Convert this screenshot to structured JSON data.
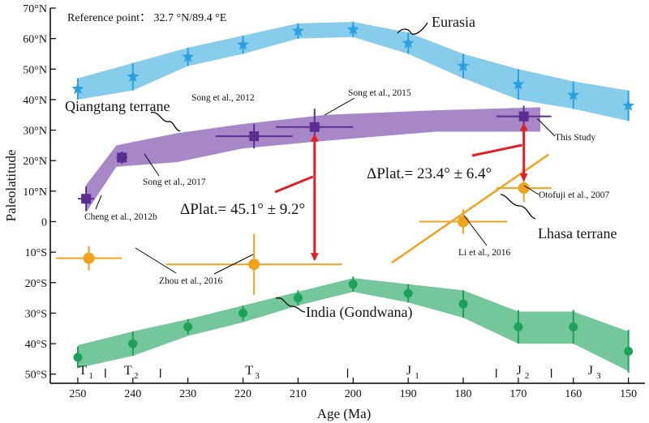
{
  "chart_data": {
    "type": "scatter",
    "xlabel": "Age (Ma)",
    "ylabel": "Paleolatitude",
    "xlim": [
      255,
      147
    ],
    "ylim": [
      -53,
      70
    ],
    "x_ticks": [
      250,
      240,
      230,
      220,
      210,
      200,
      190,
      180,
      170,
      160,
      150
    ],
    "y_ticks": [
      {
        "v": 70,
        "label": "70°N"
      },
      {
        "v": 60,
        "label": "60°N"
      },
      {
        "v": 50,
        "label": "50°N"
      },
      {
        "v": 40,
        "label": "40°N"
      },
      {
        "v": 30,
        "label": "30°N"
      },
      {
        "v": 20,
        "label": "20°N"
      },
      {
        "v": 10,
        "label": "10°N"
      },
      {
        "v": 0,
        "label": "0"
      },
      {
        "v": -10,
        "label": "10°S"
      },
      {
        "v": -20,
        "label": "20°S"
      },
      {
        "v": -30,
        "label": "30°S"
      },
      {
        "v": -40,
        "label": "40°S"
      },
      {
        "v": -50,
        "label": "50°S"
      }
    ],
    "reference_point": "Reference point： 32.7 °N/89.4 °E",
    "colors": {
      "eurasia_band": "#87cdeb",
      "eurasia_marker": "#2b9fe0",
      "qiangtang_band": "#a787c8",
      "qiangtang_marker": "#5b2d91",
      "india_band": "#74c79a",
      "india_marker": "#1ea05a",
      "lhasa": "#f2a21d",
      "arrow": "#e01f26"
    },
    "eurasia": {
      "name": "Eurasia",
      "points": [
        {
          "x": 250,
          "y": 43.5,
          "dy": 3.5
        },
        {
          "x": 240,
          "y": 47.5,
          "dy": 4.5
        },
        {
          "x": 230,
          "y": 54,
          "dy": 3
        },
        {
          "x": 220,
          "y": 58,
          "dy": 3
        },
        {
          "x": 210,
          "y": 62.5,
          "dy": 2.5
        },
        {
          "x": 200,
          "y": 63,
          "dy": 2.5
        },
        {
          "x": 190,
          "y": 58.5,
          "dy": 3.5
        },
        {
          "x": 180,
          "y": 51,
          "dy": 4
        },
        {
          "x": 170,
          "y": 45,
          "dy": 5
        },
        {
          "x": 160,
          "y": 41.5,
          "dy": 4.5
        },
        {
          "x": 150,
          "y": 38,
          "dy": 5
        }
      ]
    },
    "qiangtang": {
      "name": "Qiangtang terrane",
      "band": {
        "upper": [
          [
            248.5,
            12
          ],
          [
            243,
            25
          ],
          [
            232,
            29
          ],
          [
            220,
            32
          ],
          [
            205,
            35
          ],
          [
            185,
            36.5
          ],
          [
            166,
            37.5
          ]
        ],
        "lower": [
          [
            248.5,
            3
          ],
          [
            243,
            18
          ],
          [
            232,
            19.5
          ],
          [
            220,
            24
          ],
          [
            205,
            26.5
          ],
          [
            185,
            29.5
          ],
          [
            166,
            29.5
          ]
        ]
      },
      "points": [
        {
          "x": 248.5,
          "y": 7.5,
          "dx": 1.5,
          "dy": 4,
          "label": "Cheng et al., 2012b"
        },
        {
          "x": 242,
          "y": 21,
          "dx": 1,
          "dy": 2,
          "label": "Song et al., 2017"
        },
        {
          "x": 218,
          "y": 28,
          "dx": 7,
          "dy": 4,
          "label": "Song et al., 2012"
        },
        {
          "x": 207,
          "y": 31,
          "dx": 7,
          "dy": 6,
          "label": "Song et al., 2015"
        },
        {
          "x": 169,
          "y": 34.5,
          "dx": 5,
          "dy": 3.5,
          "label": "This Study"
        }
      ]
    },
    "lhasa": {
      "name": "Lhasa terrane",
      "trend": [
        [
          193,
          -13.5
        ],
        [
          164.5,
          22
        ]
      ],
      "points": [
        {
          "x": 248,
          "y": -12,
          "dx": 6,
          "dy": 4,
          "label": "Zhou et al., 2016"
        },
        {
          "x": 218,
          "y": -14,
          "dx": 16,
          "dy": 10,
          "label": "Zhou et al., 2016"
        },
        {
          "x": 180,
          "y": 0,
          "dx": 8,
          "dy": 4,
          "label": "Li et al., 2016"
        },
        {
          "x": 169,
          "y": 11,
          "dx": 5,
          "dy": 4.5,
          "label": "Otofuji et al., 2007"
        }
      ]
    },
    "india": {
      "name": "India (Gondwana)",
      "band": {
        "upper": [
          [
            250,
            -40.5
          ],
          [
            240,
            -36
          ],
          [
            230,
            -32
          ],
          [
            220,
            -27.5
          ],
          [
            210,
            -23
          ],
          [
            200,
            -18.5
          ],
          [
            190,
            -20.5
          ],
          [
            180,
            -22.5
          ],
          [
            170,
            -29.5
          ],
          [
            160,
            -29.5
          ],
          [
            150,
            -36
          ]
        ],
        "lower": [
          [
            250,
            -48
          ],
          [
            240,
            -44
          ],
          [
            230,
            -37.5
          ],
          [
            220,
            -33
          ],
          [
            210,
            -27.5
          ],
          [
            200,
            -23
          ],
          [
            190,
            -26.5
          ],
          [
            180,
            -31.5
          ],
          [
            170,
            -40
          ],
          [
            160,
            -40
          ],
          [
            150,
            -49
          ]
        ]
      },
      "points": [
        {
          "x": 250,
          "y": -44.5,
          "dy": 3.5
        },
        {
          "x": 240,
          "y": -40,
          "dy": 4
        },
        {
          "x": 230,
          "y": -34.5,
          "dy": 2.5
        },
        {
          "x": 220,
          "y": -30,
          "dy": 2.5
        },
        {
          "x": 210,
          "y": -25,
          "dy": 2.5
        },
        {
          "x": 200,
          "y": -20.5,
          "dy": 2.5
        },
        {
          "x": 190,
          "y": -23.5,
          "dy": 3
        },
        {
          "x": 180,
          "y": -27,
          "dy": 4.5
        },
        {
          "x": 170,
          "y": -34.5,
          "dy": 5.5
        },
        {
          "x": 160,
          "y": -34.5,
          "dy": 5.5
        },
        {
          "x": 150,
          "y": -42.5,
          "dy": 7
        }
      ]
    },
    "dplat_large": {
      "label": "ΔPlat.= 45.1° ± 9.2°",
      "x": 207,
      "from": -14,
      "to": 31
    },
    "dplat_small": {
      "label": "ΔPlat.= 23.4° ± 6.4°",
      "x": 169,
      "from": 11,
      "to": 34.5
    },
    "periods": [
      {
        "label": "T",
        "sub": "1",
        "x": 248.2
      },
      {
        "label": "T",
        "sub": "2",
        "x": 240
      },
      {
        "label": "T",
        "sub": "3",
        "x": 218
      },
      {
        "label": "J",
        "sub": "1",
        "x": 189
      },
      {
        "label": "J",
        "sub": "2",
        "x": 169
      },
      {
        "label": "J",
        "sub": "3",
        "x": 156
      }
    ],
    "period_bounds": [
      245,
      235,
      201,
      174,
      164
    ]
  }
}
